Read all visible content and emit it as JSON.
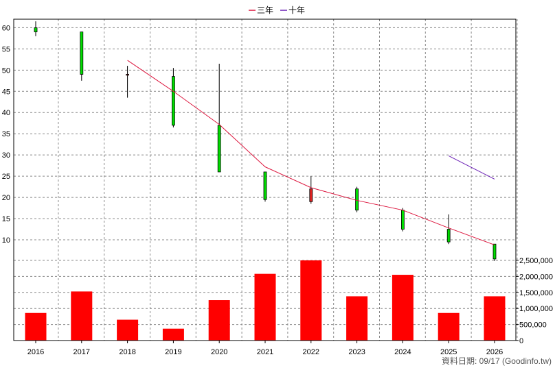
{
  "chart_data": {
    "type": "candlestick+line+bar",
    "title": "",
    "legend": [
      {
        "label": "三年",
        "color": "#dc143c"
      },
      {
        "label": "十年",
        "color": "#6a1fb5"
      }
    ],
    "legend_position": "top-center",
    "categories": [
      "2016",
      "2017",
      "2018",
      "2019",
      "2020",
      "2021",
      "2022",
      "2023",
      "2024",
      "2025",
      "2026"
    ],
    "price_axis": {
      "ylim": [
        5,
        62
      ],
      "ticks": [
        "10",
        "15",
        "20",
        "25",
        "30",
        "35",
        "40",
        "45",
        "50",
        "55",
        "60"
      ],
      "tick_values": [
        10,
        15,
        20,
        25,
        30,
        35,
        40,
        45,
        50,
        55,
        60
      ]
    },
    "volume_axis": {
      "ylim": [
        0,
        2500000
      ],
      "ticks": [
        "0",
        "500,000",
        "1,000,000",
        "1,500,000",
        "2,000,000",
        "2,500,000"
      ],
      "tick_values": [
        0,
        500000,
        1000000,
        1500000,
        2000000,
        2500000
      ],
      "position": "right"
    },
    "candles": [
      {
        "year": "2016",
        "open": 59.0,
        "close": 60.0,
        "high": 61.5,
        "low": 58.0
      },
      {
        "year": "2017",
        "open": 49.0,
        "close": 59.0,
        "high": 59.0,
        "low": 47.5
      },
      {
        "year": "2018",
        "open": 49.0,
        "close": 48.8,
        "high": 51.0,
        "low": 43.5
      },
      {
        "year": "2019",
        "open": 37.0,
        "close": 48.5,
        "high": 50.5,
        "low": 36.5
      },
      {
        "year": "2020",
        "open": 26.0,
        "close": 37.0,
        "high": 51.5,
        "low": 26.0
      },
      {
        "year": "2021",
        "open": 19.5,
        "close": 26.0,
        "high": 26.0,
        "low": 19.0
      },
      {
        "year": "2022",
        "open": 22.0,
        "close": 19.0,
        "high": 25.0,
        "low": 18.5
      },
      {
        "year": "2023",
        "open": 17.0,
        "close": 22.0,
        "high": 22.5,
        "low": 16.5
      },
      {
        "year": "2024",
        "open": 12.5,
        "close": 17.0,
        "high": 17.5,
        "low": 12.0
      },
      {
        "year": "2025",
        "open": 9.5,
        "close": 12.5,
        "high": 16.0,
        "low": 9.0
      },
      {
        "year": "2026",
        "open": 5.5,
        "close": 9.0,
        "high": 9.0,
        "low": 5.0
      }
    ],
    "series": [
      {
        "name": "三年",
        "color": "#dc143c",
        "x": [
          "2018",
          "2019",
          "2020",
          "2021",
          "2022",
          "2023",
          "2024",
          "2025",
          "2026"
        ],
        "values": [
          52.3,
          45.0,
          37.2,
          27.2,
          22.3,
          19.3,
          17.0,
          12.8,
          8.8
        ]
      },
      {
        "name": "十年",
        "color": "#6a1fb5",
        "x": [
          "2025",
          "2026"
        ],
        "values": [
          29.8,
          24.3
        ]
      }
    ],
    "volume": {
      "color": "#ff0000",
      "values": [
        860000,
        1530000,
        650000,
        370000,
        1260000,
        2080000,
        2500000,
        1380000,
        2050000,
        860000,
        1380000
      ]
    },
    "colors": {
      "up": "#00dd00",
      "down": "#dd2222",
      "grid": "#888888",
      "axis": "#000000"
    },
    "grid": true,
    "footer_note": "資料日期: 09/17  (Goodinfo.tw)"
  }
}
